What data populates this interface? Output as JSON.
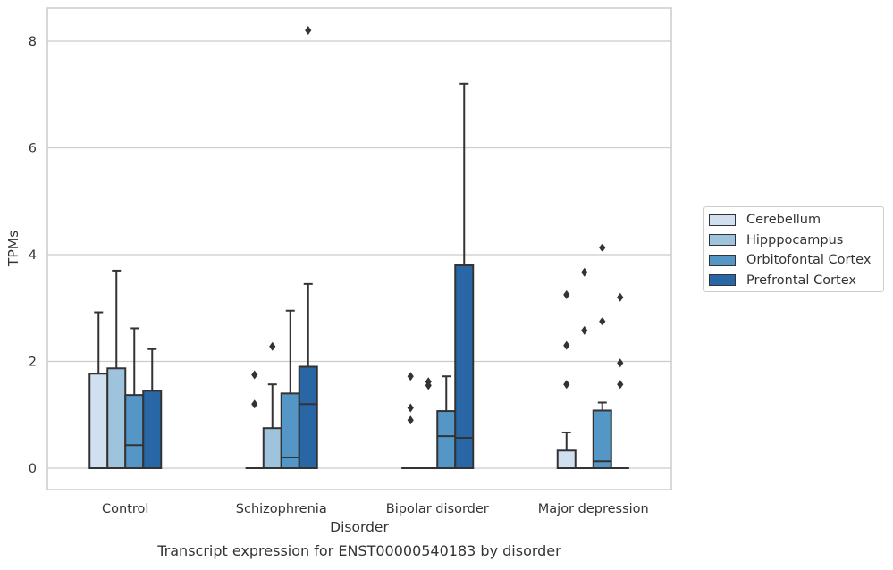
{
  "chart_data": {
    "type": "boxplot",
    "title": "Transcript expression for ENST00000540183 by disorder",
    "xlabel": "Disorder",
    "ylabel": "TPMs",
    "ylim": [
      -0.4,
      8.6
    ],
    "yticks": [
      0,
      2,
      4,
      6,
      8
    ],
    "grid": "horizontal",
    "legend_position": "right",
    "categories": [
      "Control",
      "Schizophrenia",
      "Bipolar disorder",
      "Major depression"
    ],
    "series": [
      {
        "name": "Cerebellum",
        "color": "#d0e0f0",
        "boxes": [
          {
            "q1": 0,
            "median": 0,
            "q3": 1.77,
            "whisker_low": 0,
            "whisker_high": 2.92,
            "outliers": []
          },
          {
            "q1": 0,
            "median": 0,
            "q3": 0,
            "whisker_low": 0,
            "whisker_high": 0,
            "outliers": [
              1.2,
              1.75
            ]
          },
          {
            "q1": 0,
            "median": 0,
            "q3": 0,
            "whisker_low": 0,
            "whisker_high": 0,
            "outliers": [
              0.9,
              1.13,
              1.72
            ]
          },
          {
            "q1": 0,
            "median": 0,
            "q3": 0.33,
            "whisker_low": 0,
            "whisker_high": 0.67,
            "outliers": [
              1.57,
              2.3,
              3.25
            ]
          }
        ]
      },
      {
        "name": "Hipppocampus",
        "color": "#9ec4dd",
        "boxes": [
          {
            "q1": 0,
            "median": 0,
            "q3": 1.87,
            "whisker_low": 0,
            "whisker_high": 3.7,
            "outliers": []
          },
          {
            "q1": 0,
            "median": 0,
            "q3": 0.75,
            "whisker_low": 0,
            "whisker_high": 1.57,
            "outliers": [
              2.28
            ]
          },
          {
            "q1": 0,
            "median": 0,
            "q3": 0,
            "whisker_low": 0,
            "whisker_high": 0,
            "outliers": [
              1.55,
              1.62
            ]
          },
          {
            "q1": 0,
            "median": 0,
            "q3": 0,
            "whisker_low": 0,
            "whisker_high": 0,
            "outliers": [
              2.58,
              3.67
            ]
          }
        ]
      },
      {
        "name": "Orbitofontal Cortex",
        "color": "#5497c6",
        "boxes": [
          {
            "q1": 0,
            "median": 0.43,
            "q3": 1.37,
            "whisker_low": 0,
            "whisker_high": 2.62,
            "outliers": []
          },
          {
            "q1": 0,
            "median": 0.2,
            "q3": 1.4,
            "whisker_low": 0,
            "whisker_high": 2.95,
            "outliers": []
          },
          {
            "q1": 0,
            "median": 0.6,
            "q3": 1.07,
            "whisker_low": 0,
            "whisker_high": 1.72,
            "outliers": []
          },
          {
            "q1": 0,
            "median": 0.13,
            "q3": 1.08,
            "whisker_low": 0,
            "whisker_high": 1.23,
            "outliers": [
              2.75,
              4.13
            ]
          }
        ]
      },
      {
        "name": "Prefrontal Cortex",
        "color": "#2866a6",
        "boxes": [
          {
            "q1": 0,
            "median": 0,
            "q3": 1.45,
            "whisker_low": 0,
            "whisker_high": 2.23,
            "outliers": []
          },
          {
            "q1": 0,
            "median": 1.2,
            "q3": 1.9,
            "whisker_low": 0,
            "whisker_high": 3.45,
            "outliers": [
              8.2
            ]
          },
          {
            "q1": 0,
            "median": 0.57,
            "q3": 3.8,
            "whisker_low": 0,
            "whisker_high": 7.2,
            "outliers": []
          },
          {
            "q1": 0,
            "median": 0,
            "q3": 0,
            "whisker_low": 0,
            "whisker_high": 0,
            "outliers": [
              1.57,
              1.97,
              3.2
            ]
          }
        ]
      }
    ]
  }
}
